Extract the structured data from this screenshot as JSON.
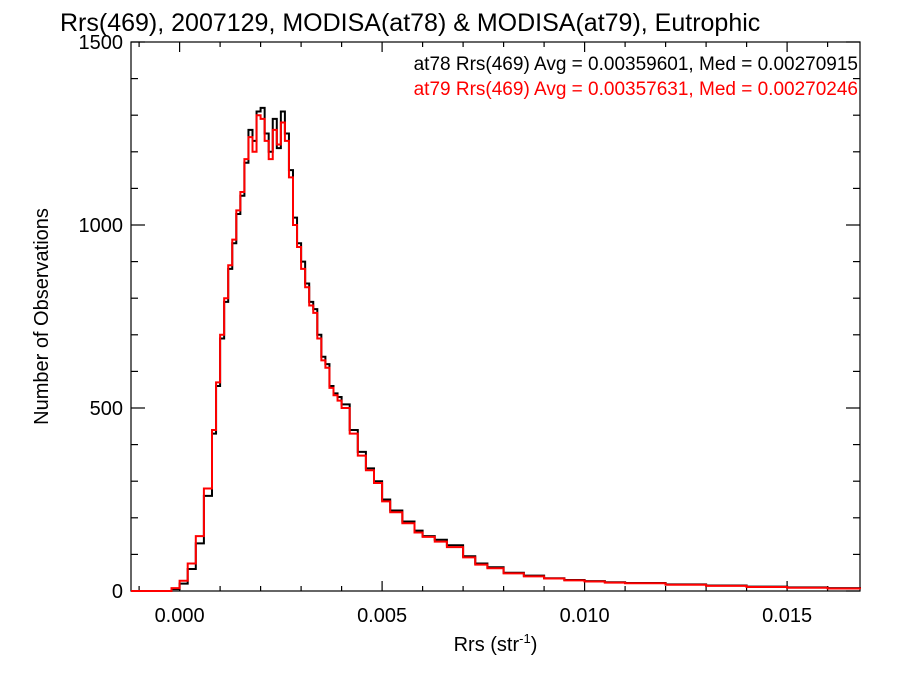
{
  "chart_data": {
    "type": "line",
    "title": "Rrs(469), 2007129, MODISA(at78) & MODISA(at79), Eutrophic",
    "xlabel_base": "Rrs (str",
    "xlabel_sup": "-1",
    "xlabel_close": ")",
    "ylabel": "Number of Observations",
    "xlim": [
      -0.0012,
      0.0168
    ],
    "ylim": [
      0,
      1500
    ],
    "x_ticks": [
      0.0,
      0.005,
      0.01,
      0.015
    ],
    "x_tick_labels": [
      "0.000",
      "0.005",
      "0.010",
      "0.015"
    ],
    "y_ticks": [
      0,
      500,
      1000,
      1500
    ],
    "y_tick_labels": [
      "0",
      "500",
      "1000",
      "1500"
    ],
    "grid": false,
    "legend_placement": "top-right",
    "series": [
      {
        "name": "at78 Rrs(469) Avg = 0.00359601, Med = 0.00270915",
        "color": "#000000",
        "x": [
          -0.0012,
          -0.0005,
          -0.0002,
          0.0,
          0.0002,
          0.0004,
          0.0006,
          0.0008,
          0.0009,
          0.001,
          0.0011,
          0.0012,
          0.0013,
          0.0014,
          0.0015,
          0.0016,
          0.0017,
          0.0018,
          0.0019,
          0.002,
          0.0021,
          0.0022,
          0.0023,
          0.0024,
          0.0025,
          0.0026,
          0.0027,
          0.0028,
          0.0029,
          0.003,
          0.0031,
          0.0032,
          0.0033,
          0.0034,
          0.0035,
          0.0036,
          0.0037,
          0.0038,
          0.0039,
          0.004,
          0.0042,
          0.0044,
          0.0046,
          0.0048,
          0.005,
          0.0052,
          0.0055,
          0.0058,
          0.006,
          0.0063,
          0.0066,
          0.007,
          0.0073,
          0.0076,
          0.008,
          0.0085,
          0.009,
          0.0095,
          0.01,
          0.0105,
          0.011,
          0.012,
          0.013,
          0.014,
          0.015,
          0.016,
          0.0168
        ],
        "values": [
          0,
          0,
          5,
          20,
          60,
          130,
          260,
          430,
          560,
          690,
          790,
          880,
          950,
          1030,
          1080,
          1170,
          1260,
          1230,
          1310,
          1320,
          1250,
          1200,
          1290,
          1210,
          1310,
          1250,
          1150,
          1020,
          950,
          900,
          840,
          790,
          770,
          700,
          640,
          620,
          560,
          540,
          530,
          510,
          440,
          380,
          335,
          300,
          250,
          220,
          190,
          165,
          150,
          140,
          125,
          95,
          75,
          65,
          50,
          42,
          35,
          30,
          27,
          24,
          22,
          18,
          15,
          12,
          10,
          8,
          6
        ]
      },
      {
        "name": "at79 Rrs(469) Avg = 0.00357631, Med = 0.00270246",
        "color": "#ff0000",
        "x": [
          -0.0012,
          -0.0005,
          -0.0002,
          0.0,
          0.0002,
          0.0004,
          0.0006,
          0.0008,
          0.0009,
          0.001,
          0.0011,
          0.0012,
          0.0013,
          0.0014,
          0.0015,
          0.0016,
          0.0017,
          0.0018,
          0.0019,
          0.002,
          0.0021,
          0.0022,
          0.0023,
          0.0024,
          0.0025,
          0.0026,
          0.0027,
          0.0028,
          0.0029,
          0.003,
          0.0031,
          0.0032,
          0.0033,
          0.0034,
          0.0035,
          0.0036,
          0.0037,
          0.0038,
          0.0039,
          0.004,
          0.0042,
          0.0044,
          0.0046,
          0.0048,
          0.005,
          0.0052,
          0.0055,
          0.0058,
          0.006,
          0.0063,
          0.0066,
          0.007,
          0.0073,
          0.0076,
          0.008,
          0.0085,
          0.009,
          0.0095,
          0.01,
          0.0105,
          0.011,
          0.012,
          0.013,
          0.014,
          0.015,
          0.016,
          0.0168
        ],
        "values": [
          0,
          0,
          8,
          28,
          75,
          150,
          280,
          440,
          570,
          700,
          800,
          890,
          960,
          1040,
          1090,
          1180,
          1240,
          1200,
          1300,
          1290,
          1230,
          1180,
          1260,
          1220,
          1280,
          1230,
          1130,
          1000,
          940,
          880,
          830,
          780,
          760,
          690,
          630,
          610,
          555,
          535,
          520,
          500,
          430,
          370,
          330,
          295,
          245,
          215,
          185,
          160,
          148,
          135,
          120,
          92,
          72,
          62,
          48,
          40,
          34,
          29,
          26,
          23,
          21,
          17,
          14,
          11,
          9,
          7,
          5
        ]
      }
    ]
  }
}
